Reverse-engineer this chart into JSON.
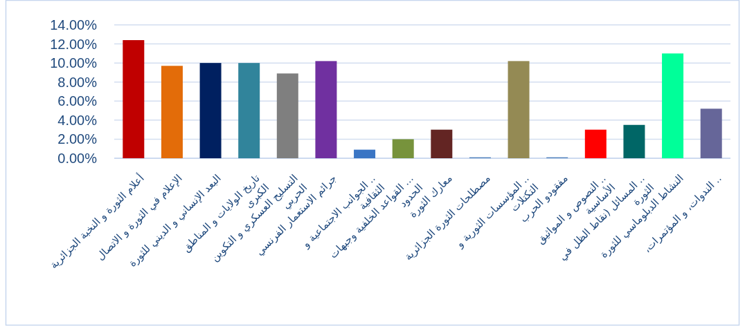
{
  "chart_data": {
    "type": "bar",
    "categories": [
      "أعلام الثورة و النخبة الجزائرية",
      "الإعلام في الثورة و الاتصال",
      "البعد الإنساني و الديني للثورة",
      "تاريخ الولايات و المناطق الكبرى",
      "التسليح العسكري و التكوين الحربي",
      "جرائم الاستعمار الفرنسي",
      ".. الجوانب الاجتماعية و الثقافية",
      "... القواعد الخلفية وجبهات الحدود",
      "معارك الثورة",
      "مصطلحات الثورة الجزائرية",
      ".. المؤسسات الثورية و التكتلات",
      "مفقودو الحرب",
      ".. النصوص و المواثيق الأساسية",
      ".. المسائل (نقاط الظل في الثورة",
      "النشاط الدبلوماسي للثورة",
      ".. الندوات، و المؤتمرات،"
    ],
    "values": [
      12.4,
      9.7,
      10.0,
      10.0,
      8.9,
      10.2,
      0.9,
      2.0,
      3.0,
      0.1,
      10.2,
      0.1,
      3.0,
      3.5,
      11.0,
      5.2
    ],
    "colors": [
      "#c00000",
      "#e36c09",
      "#002060",
      "#31849b",
      "#7f7f7f",
      "#7030a0",
      "#3a75c4",
      "#77933c",
      "#632523",
      "#4f81bd",
      "#948a54",
      "#4f81bd",
      "#ff0000",
      "#006666",
      "#00ff99",
      "#666699"
    ],
    "ylim": [
      0,
      14
    ],
    "yticks": [
      {
        "value": 0,
        "label": "0.00%"
      },
      {
        "value": 2,
        "label": "2.00%"
      },
      {
        "value": 4,
        "label": "4.00%"
      },
      {
        "value": 6,
        "label": "6.00%"
      },
      {
        "value": 8,
        "label": "8.00%"
      },
      {
        "value": 10,
        "label": "10.00%"
      },
      {
        "value": 12,
        "label": "12.00%"
      },
      {
        "value": 14,
        "label": "14.00%"
      }
    ],
    "grid": "y"
  }
}
